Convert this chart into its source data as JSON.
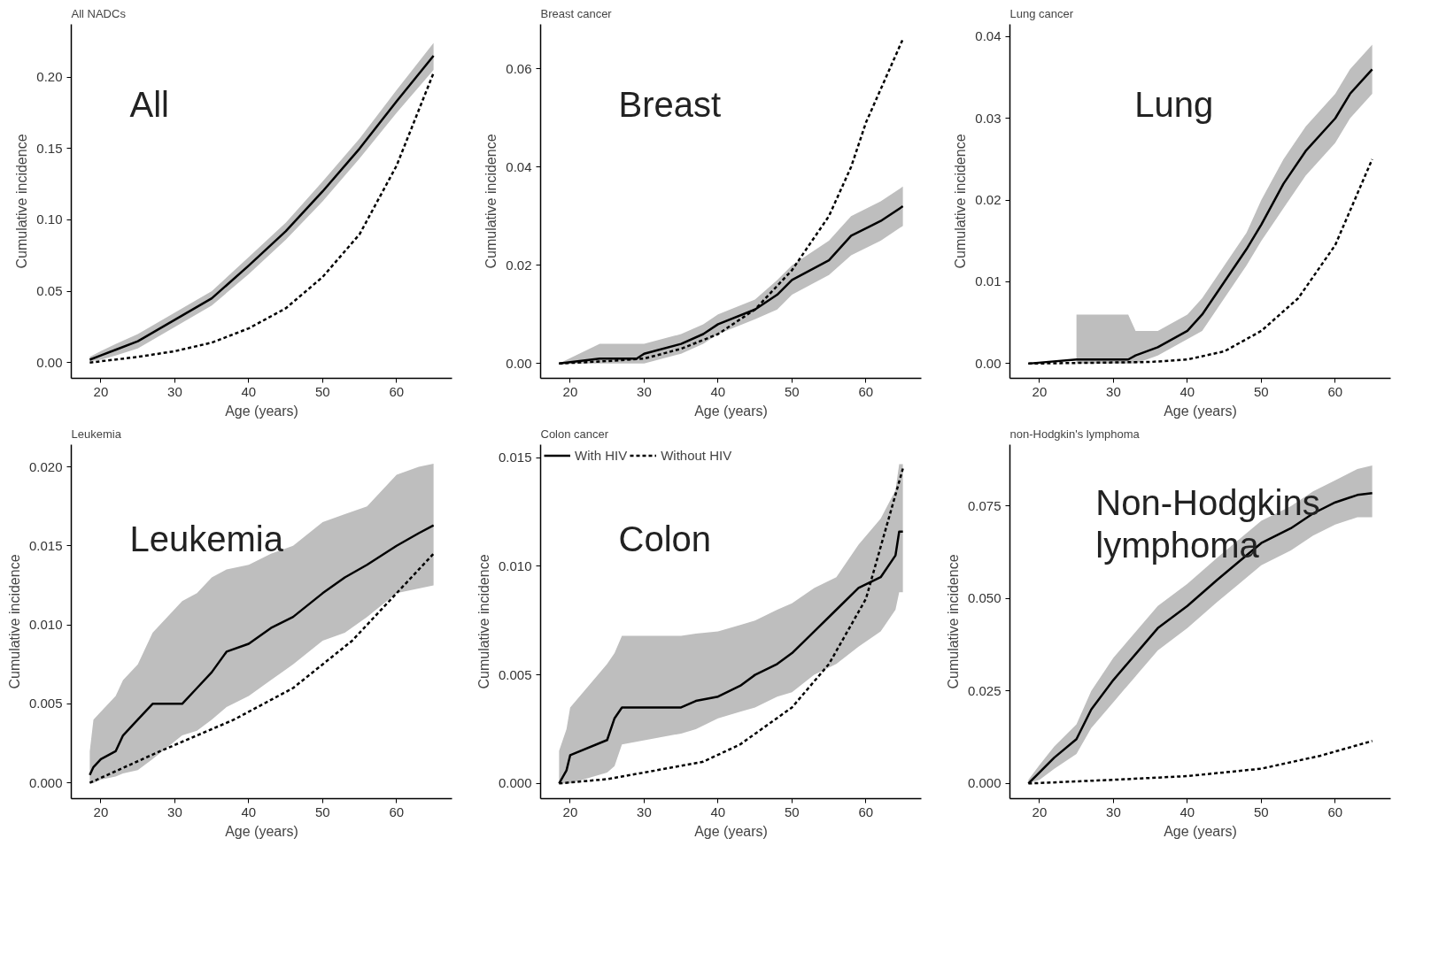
{
  "chart_data": [
    {
      "type": "line",
      "title": "All NADCs",
      "xlabel": "Age (years)",
      "ylabel": "Cumulative incidence",
      "annotations": [
        "All"
      ],
      "xlim": [
        16,
        67.5
      ],
      "xticks": [
        20,
        30,
        40,
        50,
        60
      ],
      "ylim": [
        -0.011,
        0.237
      ],
      "yticks": [
        {
          "value": 0,
          "label": "0.00"
        },
        {
          "value": 0.05,
          "label": "0.05"
        },
        {
          "value": 0.1,
          "label": "0.10"
        },
        {
          "value": 0.15,
          "label": "0.15"
        },
        {
          "value": 0.2,
          "label": "0.20"
        }
      ],
      "grid": false,
      "legend": false,
      "series": [
        {
          "color": "#000000",
          "line_style": "solid",
          "x": [
            18.5,
            20,
            22,
            25,
            30,
            35,
            40,
            45,
            50,
            55,
            60,
            65
          ],
          "values": [
            0.002,
            0.005,
            0.009,
            0.015,
            0.03,
            0.045,
            0.068,
            0.092,
            0.12,
            0.15,
            0.183,
            0.215
          ],
          "lower": [
            0.001,
            0.002,
            0.005,
            0.01,
            0.025,
            0.04,
            0.062,
            0.086,
            0.113,
            0.143,
            0.175,
            0.205
          ],
          "upper": [
            0.004,
            0.008,
            0.013,
            0.02,
            0.035,
            0.05,
            0.074,
            0.098,
            0.127,
            0.157,
            0.191,
            0.224
          ]
        },
        {
          "color": "#000000",
          "line_style": "dashed",
          "x": [
            18.5,
            25,
            30,
            35,
            40,
            45,
            50,
            55,
            60,
            65
          ],
          "values": [
            0,
            0.004,
            0.008,
            0.014,
            0.024,
            0.038,
            0.06,
            0.09,
            0.138,
            0.203
          ]
        }
      ]
    },
    {
      "type": "line",
      "title": "Breast cancer",
      "xlabel": "Age (years)",
      "ylabel": "Cumulative incidence",
      "annotations": [
        "Breast"
      ],
      "xlim": [
        16,
        67.5
      ],
      "xticks": [
        20,
        30,
        40,
        50,
        60
      ],
      "ylim": [
        -0.003,
        0.069
      ],
      "yticks": [
        {
          "value": 0,
          "label": "0.00"
        },
        {
          "value": 0.02,
          "label": "0.02"
        },
        {
          "value": 0.04,
          "label": "0.04"
        },
        {
          "value": 0.06,
          "label": "0.06"
        }
      ],
      "grid": false,
      "legend": false,
      "series": [
        {
          "color": "#000000",
          "line_style": "solid",
          "x": [
            18.5,
            24,
            29,
            30,
            35,
            38,
            40,
            45,
            48,
            50,
            55,
            58,
            62,
            65
          ],
          "values": [
            0,
            0.001,
            0.001,
            0.002,
            0.004,
            0.006,
            0.008,
            0.011,
            0.014,
            0.017,
            0.021,
            0.026,
            0.029,
            0.032
          ],
          "lower": [
            0,
            0,
            0,
            0,
            0.002,
            0.004,
            0.006,
            0.009,
            0.011,
            0.014,
            0.018,
            0.022,
            0.025,
            0.028
          ],
          "upper": [
            0,
            0.004,
            0.004,
            0.004,
            0.006,
            0.008,
            0.01,
            0.013,
            0.017,
            0.02,
            0.025,
            0.03,
            0.033,
            0.036
          ]
        },
        {
          "color": "#000000",
          "line_style": "dashed",
          "x": [
            18.5,
            25,
            30,
            35,
            40,
            45,
            50,
            55,
            58,
            60,
            65
          ],
          "values": [
            0,
            0.0005,
            0.001,
            0.003,
            0.006,
            0.011,
            0.019,
            0.03,
            0.04,
            0.049,
            0.066
          ]
        }
      ]
    },
    {
      "type": "line",
      "title": "Lung cancer",
      "xlabel": "Age (years)",
      "ylabel": "Cumulative incidence",
      "annotations": [
        "Lung"
      ],
      "xlim": [
        16,
        67.5
      ],
      "xticks": [
        20,
        30,
        40,
        50,
        60
      ],
      "ylim": [
        -0.0018,
        0.0415
      ],
      "yticks": [
        {
          "value": 0,
          "label": "0.00"
        },
        {
          "value": 0.01,
          "label": "0.01"
        },
        {
          "value": 0.02,
          "label": "0.02"
        },
        {
          "value": 0.03,
          "label": "0.03"
        },
        {
          "value": 0.04,
          "label": "0.04"
        }
      ],
      "grid": false,
      "legend": false,
      "series": [
        {
          "color": "#000000",
          "line_style": "solid",
          "x": [
            18.5,
            25,
            32,
            33,
            36,
            40,
            42,
            45,
            48,
            50,
            53,
            56,
            60,
            62,
            65
          ],
          "values": [
            0,
            0.0005,
            0.0005,
            0.001,
            0.002,
            0.004,
            0.006,
            0.01,
            0.014,
            0.017,
            0.022,
            0.026,
            0.03,
            0.033,
            0.036
          ],
          "lower": [
            null,
            0,
            0,
            0,
            0.001,
            0.003,
            0.004,
            0.008,
            0.012,
            0.015,
            0.019,
            0.023,
            0.027,
            0.03,
            0.033
          ],
          "upper": [
            null,
            0.006,
            0.006,
            0.004,
            0.004,
            0.006,
            0.008,
            0.012,
            0.016,
            0.02,
            0.025,
            0.029,
            0.033,
            0.036,
            0.039
          ]
        },
        {
          "color": "#000000",
          "line_style": "dashed",
          "x": [
            18.5,
            35,
            40,
            45,
            50,
            55,
            60,
            65
          ],
          "values": [
            0,
            0.0002,
            0.0005,
            0.0015,
            0.004,
            0.008,
            0.0145,
            0.025
          ]
        }
      ]
    },
    {
      "type": "line",
      "title": "Leukemia",
      "xlabel": "Age (years)",
      "ylabel": "Cumulative incidence",
      "annotations": [
        "Leukemia"
      ],
      "xlim": [
        16,
        67.5
      ],
      "xticks": [
        20,
        30,
        40,
        50,
        60
      ],
      "ylim": [
        -0.001,
        0.0214
      ],
      "yticks": [
        {
          "value": 0,
          "label": "0.000"
        },
        {
          "value": 0.005,
          "label": "0.005"
        },
        {
          "value": 0.01,
          "label": "0.010"
        },
        {
          "value": 0.015,
          "label": "0.015"
        },
        {
          "value": 0.02,
          "label": "0.020"
        }
      ],
      "grid": false,
      "legend": false,
      "series": [
        {
          "color": "#000000",
          "line_style": "solid",
          "x": [
            18.5,
            19,
            20,
            22,
            23,
            25,
            27,
            31,
            33,
            35,
            37,
            40,
            43,
            46,
            50,
            53,
            56,
            60,
            63,
            65
          ],
          "values": [
            0.0005,
            0.001,
            0.0015,
            0.002,
            0.003,
            0.004,
            0.005,
            0.005,
            0.006,
            0.007,
            0.0083,
            0.0088,
            0.0098,
            0.0105,
            0.012,
            0.013,
            0.0138,
            0.015,
            0.0158,
            0.0163
          ],
          "lower": [
            0,
            0,
            0.0002,
            0.0004,
            0.0006,
            0.0008,
            0.0015,
            0.003,
            0.0033,
            0.004,
            0.0048,
            0.0055,
            0.0065,
            0.0075,
            0.009,
            0.0095,
            0.0105,
            0.012,
            0.0123,
            0.0125
          ],
          "upper": [
            0.002,
            0.004,
            0.0045,
            0.0055,
            0.0065,
            0.0075,
            0.0095,
            0.0115,
            0.012,
            0.013,
            0.0135,
            0.0138,
            0.0145,
            0.015,
            0.0165,
            0.017,
            0.0175,
            0.0195,
            0.02,
            0.0202
          ]
        },
        {
          "color": "#000000",
          "line_style": "dashed",
          "x": [
            18.5,
            28,
            38,
            46,
            54,
            60,
            65
          ],
          "values": [
            0,
            0.002,
            0.004,
            0.006,
            0.009,
            0.012,
            0.0145
          ]
        }
      ]
    },
    {
      "type": "line",
      "title": "Colon cancer",
      "xlabel": "Age (years)",
      "ylabel": "Cumulative incidence",
      "annotations": [
        "Colon"
      ],
      "xlim": [
        16,
        67.5
      ],
      "xticks": [
        20,
        30,
        40,
        50,
        60
      ],
      "ylim": [
        -0.0007,
        0.0156
      ],
      "yticks": [
        {
          "value": 0,
          "label": "0.000"
        },
        {
          "value": 0.005,
          "label": "0.005"
        },
        {
          "value": 0.01,
          "label": "0.010"
        },
        {
          "value": 0.015,
          "label": "0.015"
        }
      ],
      "grid": false,
      "legend": "top left",
      "series": [
        {
          "name": "With HIV",
          "color": "#000000",
          "line_style": "solid",
          "x": [
            18.5,
            19.5,
            20,
            25,
            26,
            27,
            35,
            37,
            40,
            43,
            45,
            48,
            50,
            53,
            56,
            59,
            62,
            64,
            64.5,
            65
          ],
          "values": [
            0,
            0.0006,
            0.0013,
            0.002,
            0.003,
            0.0035,
            0.0035,
            0.0038,
            0.004,
            0.0045,
            0.005,
            0.0055,
            0.006,
            0.007,
            0.008,
            0.009,
            0.0095,
            0.0105,
            0.0116,
            0.0116
          ],
          "lower": [
            0,
            0,
            0,
            0.0005,
            0.0008,
            0.0018,
            0.0023,
            0.0025,
            0.003,
            0.0033,
            0.0035,
            0.004,
            0.0042,
            0.005,
            0.0055,
            0.0063,
            0.007,
            0.008,
            0.0088,
            0.0088
          ],
          "upper": [
            0.0015,
            0.0025,
            0.0035,
            0.0055,
            0.006,
            0.0068,
            0.0068,
            0.0069,
            0.007,
            0.0073,
            0.0075,
            0.008,
            0.0083,
            0.009,
            0.0095,
            0.011,
            0.0122,
            0.0135,
            0.0147,
            0.0147
          ]
        },
        {
          "name": "Without HIV",
          "color": "#000000",
          "line_style": "dashed",
          "x": [
            18.5,
            25,
            30,
            38,
            43,
            50,
            55,
            60,
            65
          ],
          "values": [
            0,
            0.0002,
            0.0005,
            0.001,
            0.0018,
            0.0035,
            0.0055,
            0.0085,
            0.0145
          ]
        }
      ]
    },
    {
      "type": "line",
      "title": "non-Hodgkin's lymphoma",
      "xlabel": "Age (years)",
      "ylabel": "Cumulative incidence",
      "annotations": [
        "Non-Hodgkins\nlymphoma"
      ],
      "xlim": [
        16,
        67.5
      ],
      "xticks": [
        20,
        30,
        40,
        50,
        60
      ],
      "ylim": [
        -0.0041,
        0.0916
      ],
      "yticks": [
        {
          "value": 0,
          "label": "0.000"
        },
        {
          "value": 0.025,
          "label": "0.025"
        },
        {
          "value": 0.05,
          "label": "0.050"
        },
        {
          "value": 0.075,
          "label": "0.075"
        }
      ],
      "grid": false,
      "legend": false,
      "series": [
        {
          "color": "#000000",
          "line_style": "solid",
          "x": [
            18.5,
            20,
            22,
            25,
            27,
            30,
            33,
            36,
            40,
            44,
            47,
            50,
            54,
            57,
            60,
            63,
            65
          ],
          "values": [
            0,
            0.003,
            0.007,
            0.012,
            0.02,
            0.028,
            0.035,
            0.042,
            0.048,
            0.055,
            0.06,
            0.065,
            0.069,
            0.073,
            0.076,
            0.078,
            0.0785
          ],
          "lower": [
            0,
            0.001,
            0.004,
            0.008,
            0.015,
            0.022,
            0.029,
            0.036,
            0.042,
            0.049,
            0.054,
            0.059,
            0.063,
            0.067,
            0.07,
            0.072,
            0.072
          ],
          "upper": [
            0.001,
            0.005,
            0.01,
            0.016,
            0.025,
            0.034,
            0.041,
            0.048,
            0.054,
            0.061,
            0.066,
            0.071,
            0.075,
            0.079,
            0.082,
            0.085,
            0.086
          ]
        },
        {
          "color": "#000000",
          "line_style": "dashed",
          "x": [
            18.5,
            30,
            40,
            50,
            58,
            65
          ],
          "values": [
            0,
            0.001,
            0.002,
            0.004,
            0.0075,
            0.0115
          ]
        }
      ]
    }
  ]
}
